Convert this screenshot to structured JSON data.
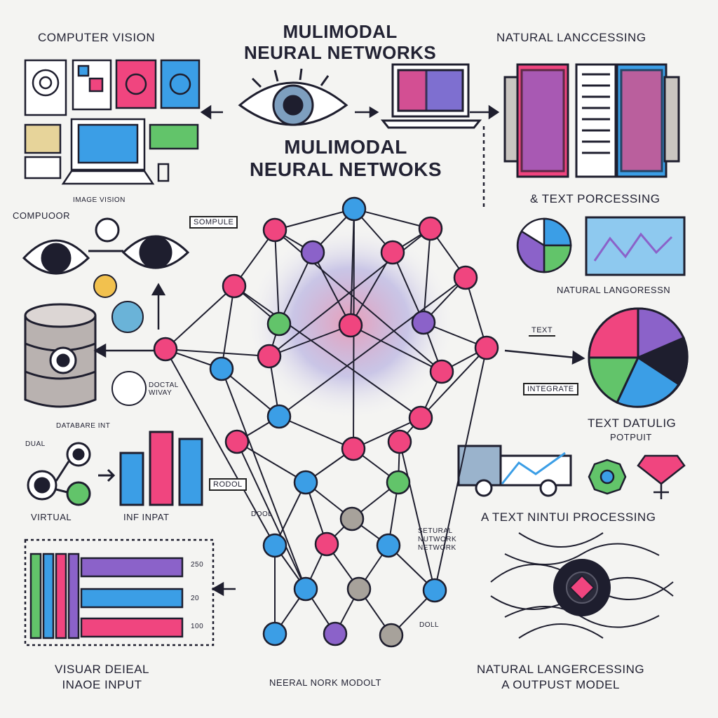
{
  "titles": {
    "main_top": "MULIMODAL\nNEURAL NETWORKS",
    "main_center": "MULIMODAL\nNEURAL NETWOKS"
  },
  "labels": {
    "computer_vision": "COMPUTER VISION",
    "nat_lang_top": "NATURAL LANCCESSING",
    "text_porcessing": "& TEXT PORCESSING",
    "image_vision": "IMAGE VISION",
    "computor": "COMPUOOR",
    "sompule": "SOMPULE",
    "natural_langoresssn": "NATURAL LANGORESSN",
    "text": "TEXT",
    "integrate": "INTEGRATE",
    "text_datalig": "TEXT DATULIG",
    "potput": "POTPUIT",
    "a_text_nintui": "A TEXT NINTUI PROCESSING",
    "database_input": "DATABARE INT",
    "doctal_wivay": "DOCTAL\nWIVAY",
    "dual": "DUAL",
    "virtual": "VIRTUAL",
    "inf_input": "INF INPAT",
    "rodol": "RODOL",
    "dool": "DOOL",
    "setural_network": "SETURAL\nNUTWORK\nNETWORK",
    "doll": "DOLL",
    "visual_image": "VISUAR DEIEAL\nINAOE INPUT",
    "neural_model": "NEERAL NORK MODOLT",
    "natural_output": "NATURAL LANGERCESSING\nA OUTPUST MODEL",
    "num_250": "250",
    "num_20": "20",
    "num_100": "100"
  },
  "colors": {
    "pink": "#f0457f",
    "blue": "#3b9ee6",
    "purple": "#8b62c9",
    "green": "#62c46a",
    "gray": "#a7a29b",
    "dark": "#1e1e2e"
  },
  "icons": [
    "eye-icon",
    "laptop-icon",
    "database-icon",
    "pie-chart-icon",
    "bar-chart-icon",
    "truck-icon",
    "gem-icon",
    "gear-icon",
    "document-icon"
  ]
}
